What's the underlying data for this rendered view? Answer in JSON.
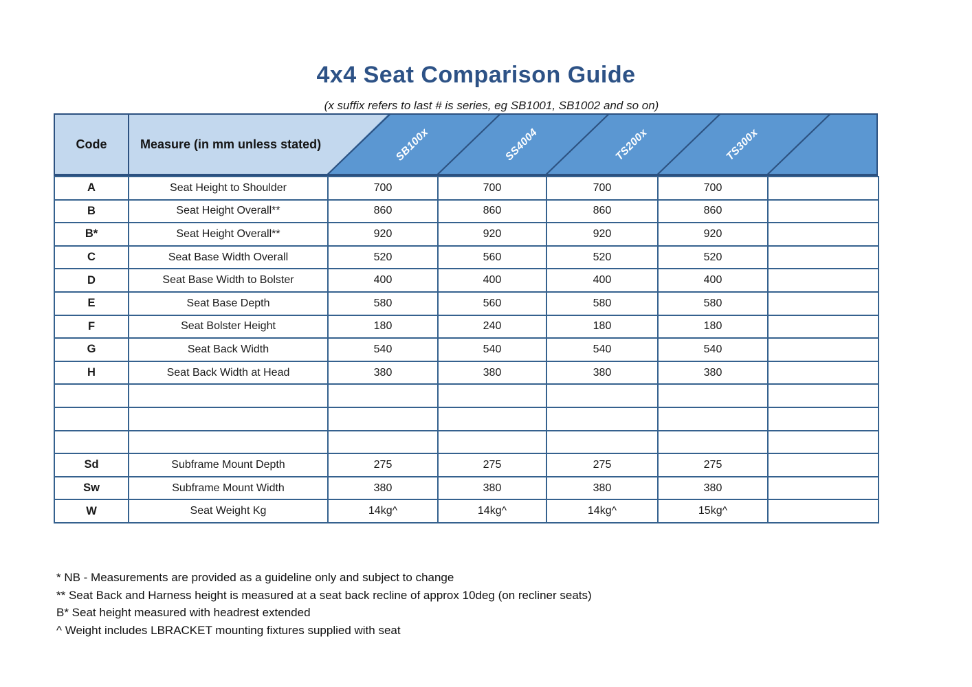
{
  "title": "4x4 Seat Comparison Guide",
  "subtitle": "(x suffix refers to last # is series, eg SB1001, SB1002 and so on)",
  "table": {
    "code_header": "Code",
    "measure_header": "Measure (in mm unless stated)",
    "product_columns": [
      "SB100x",
      "SS4004",
      "TS200x",
      "TS300x",
      ""
    ],
    "rows": [
      {
        "code": "A",
        "measure": "Seat Height to Shoulder",
        "values": [
          "700",
          "700",
          "700",
          "700",
          ""
        ]
      },
      {
        "code": "B",
        "measure": "Seat Height Overall**",
        "values": [
          "860",
          "860",
          "860",
          "860",
          ""
        ]
      },
      {
        "code": "B*",
        "measure": "Seat Height Overall**",
        "values": [
          "920",
          "920",
          "920",
          "920",
          ""
        ]
      },
      {
        "code": "C",
        "measure": "Seat Base Width Overall",
        "values": [
          "520",
          "560",
          "520",
          "520",
          ""
        ]
      },
      {
        "code": "D",
        "measure": "Seat Base Width to Bolster",
        "values": [
          "400",
          "400",
          "400",
          "400",
          ""
        ]
      },
      {
        "code": "E",
        "measure": "Seat Base Depth",
        "values": [
          "580",
          "560",
          "580",
          "580",
          ""
        ]
      },
      {
        "code": "F",
        "measure": "Seat Bolster Height",
        "values": [
          "180",
          "240",
          "180",
          "180",
          ""
        ]
      },
      {
        "code": "G",
        "measure": "Seat Back Width",
        "values": [
          "540",
          "540",
          "540",
          "540",
          ""
        ]
      },
      {
        "code": "H",
        "measure": "Seat Back Width at Head",
        "values": [
          "380",
          "380",
          "380",
          "380",
          ""
        ]
      },
      {
        "code": "",
        "measure": "",
        "values": [
          "",
          "",
          "",
          "",
          ""
        ]
      },
      {
        "code": "",
        "measure": "",
        "values": [
          "",
          "",
          "",
          "",
          ""
        ]
      },
      {
        "code": "",
        "measure": "",
        "values": [
          "",
          "",
          "",
          "",
          ""
        ]
      },
      {
        "code": "Sd",
        "measure": "Subframe Mount Depth",
        "values": [
          "275",
          "275",
          "275",
          "275",
          ""
        ]
      },
      {
        "code": "Sw",
        "measure": "Subframe Mount Width",
        "values": [
          "380",
          "380",
          "380",
          "380",
          ""
        ]
      },
      {
        "code": "W",
        "measure": "Seat Weight Kg",
        "values": [
          "14kg^",
          "14kg^",
          "14kg^",
          "15kg^",
          ""
        ]
      }
    ]
  },
  "footnotes": [
    "* NB - Measurements are provided as a guideline only and subject to change",
    "** Seat Back and Harness height is measured at a seat back recline of approx 10deg (on recliner seats)",
    "B* Seat height measured with headrest extended",
    "^ Weight includes LBRACKET mounting fixtures supplied with seat"
  ],
  "colors": {
    "title_blue": "#2d5286",
    "header_light_blue": "#c3d8ee",
    "header_mid_blue": "#5b97d2",
    "border_navy": "#2c5180"
  }
}
